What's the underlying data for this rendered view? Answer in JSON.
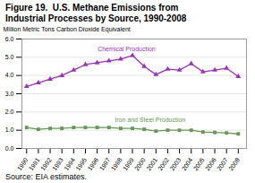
{
  "chart_data": {
    "type": "line",
    "title": "Figure 19.  U.S. Methane Emissions from",
    "subtitle": "Industrial Processes by Source, 1990-2008",
    "caption": "Source: EIA estimates.",
    "ylabel": "Million Metric Tons Carbon Dioxide Equivalent",
    "x": [
      1990,
      1991,
      1992,
      1993,
      1994,
      1995,
      1996,
      1997,
      1998,
      1999,
      2000,
      2001,
      2002,
      2003,
      2004,
      2005,
      2006,
      2007,
      2008
    ],
    "series": [
      {
        "name": "Chemical Production",
        "color": "#9933bb",
        "marker": "triangle",
        "values": [
          3.4,
          3.6,
          3.8,
          4.0,
          4.3,
          4.6,
          4.7,
          4.8,
          4.9,
          5.1,
          4.5,
          4.05,
          4.35,
          4.3,
          4.65,
          4.2,
          4.3,
          4.4,
          3.95
        ]
      },
      {
        "name": "Iron and Steel Production",
        "color": "#669955",
        "marker": "square",
        "values": [
          1.15,
          1.05,
          1.1,
          1.1,
          1.15,
          1.15,
          1.15,
          1.15,
          1.1,
          1.1,
          1.05,
          0.95,
          1.0,
          1.0,
          1.0,
          0.9,
          0.88,
          0.85,
          0.8
        ]
      }
    ],
    "annotations": [
      {
        "text": "Chemical Production",
        "x": 1998.5,
        "y": 5.35,
        "color": "#9933bb"
      },
      {
        "text": "Iron and Steel Production",
        "x": 2000.5,
        "y": 1.45,
        "color": "#669955"
      }
    ],
    "xlim": [
      1989.6,
      2008.7
    ],
    "xticks": [
      1990,
      1991,
      1992,
      1993,
      1994,
      1995,
      1996,
      1997,
      1998,
      1999,
      2000,
      2001,
      2002,
      2003,
      2004,
      2005,
      2006,
      2007,
      2008
    ],
    "ylim": [
      0,
      6
    ],
    "yticks": [
      0,
      1,
      2,
      3,
      4,
      5,
      6
    ],
    "grid": true
  }
}
